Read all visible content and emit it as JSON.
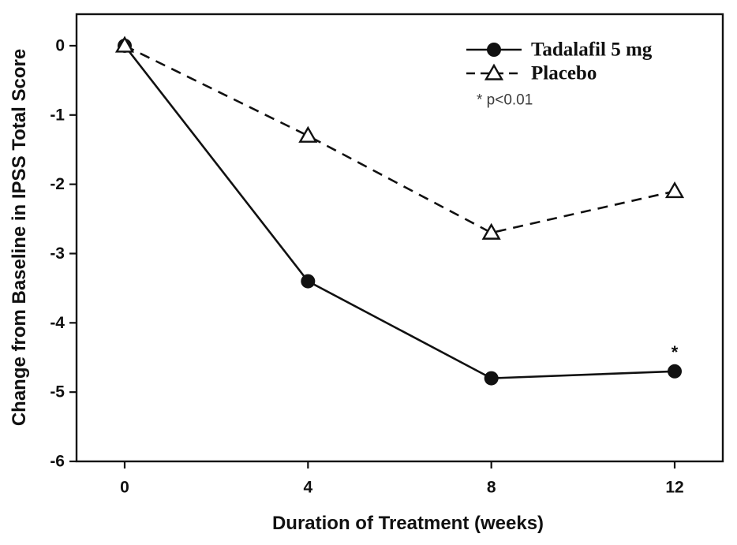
{
  "chart_data": {
    "type": "line",
    "title": "",
    "xlabel": "Duration of Treatment (weeks)",
    "ylabel": "Change from Baseline in IPSS Total Score",
    "x": [
      0,
      4,
      8,
      12
    ],
    "x_tick_labels": [
      "0",
      "4",
      "8",
      "12"
    ],
    "y_tick_values": [
      0,
      -1,
      -2,
      -3,
      -4,
      -5,
      -6
    ],
    "y_tick_labels": [
      "0",
      "-1",
      "-2",
      "-3",
      "-4",
      "-5",
      "-6"
    ],
    "xlim": [
      -1.05,
      13.05
    ],
    "ylim": [
      -6.0,
      0.455
    ],
    "grid": false,
    "series": [
      {
        "name": "Tadalafil 5 mg",
        "values": [
          0,
          -3.4,
          -4.8,
          -4.7
        ],
        "line_style": "solid",
        "marker": "filled-circle",
        "color": "#111111"
      },
      {
        "name": "Placebo",
        "values": [
          0,
          -1.3,
          -2.7,
          -2.1
        ],
        "line_style": "dashed",
        "marker": "open-triangle",
        "color": "#111111"
      }
    ],
    "annotations": [
      {
        "text": "*",
        "x": 12,
        "y": -4.7
      }
    ],
    "legend": {
      "position": "top-right",
      "entries": [
        "Tadalafil 5 mg",
        "Placebo"
      ],
      "p_note": "* p<0.01"
    }
  },
  "colors": {
    "line": "#111111",
    "text": "#111111",
    "p_note": "#3d3d3d",
    "background": "#ffffff"
  }
}
